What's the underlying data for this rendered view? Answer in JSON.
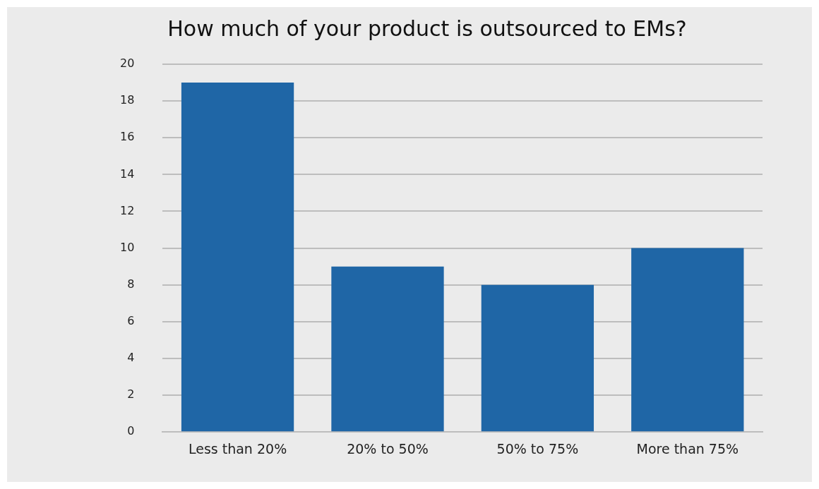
{
  "chart_data": {
    "type": "bar",
    "title": "How much of your product is outsourced to EMs?",
    "categories": [
      "Less than 20%",
      "20% to 50%",
      "50% to 75%",
      "More than 75%"
    ],
    "values": [
      19,
      9,
      8,
      10
    ],
    "color": "#1f66a6",
    "ylim": [
      0,
      20
    ],
    "yticks": [
      0,
      2,
      4,
      6,
      8,
      10,
      12,
      14,
      16,
      18,
      20
    ],
    "grid": "y"
  }
}
